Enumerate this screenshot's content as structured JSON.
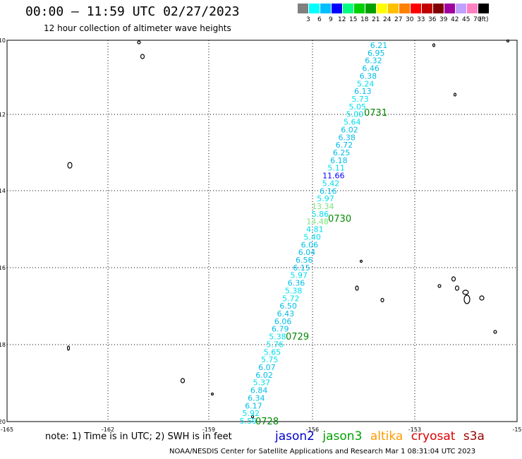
{
  "header": {
    "title": "00:00 – 11:59 UTC 02/27/2023",
    "subtitle": "12 hour collection of altimeter wave heights"
  },
  "legend": {
    "colors": [
      "#808080",
      "#00ffff",
      "#00bfff",
      "#0000ff",
      "#00ff80",
      "#00d000",
      "#00a000",
      "#ffff00",
      "#ffc000",
      "#ff8000",
      "#ff0000",
      "#c00000",
      "#800000",
      "#a000a0",
      "#c0a0ff",
      "#ff80c0",
      "#000000"
    ],
    "labels": [
      "3",
      "6",
      "9",
      "12",
      "15",
      "18",
      "21",
      "24",
      "27",
      "30",
      "33",
      "36",
      "39",
      "42",
      "45",
      "70",
      "(ft)"
    ]
  },
  "axes": {
    "y_ticks": [
      "-10",
      "-12",
      "-14",
      "-16",
      "-18",
      "-20"
    ],
    "x_ticks": [
      "-165",
      "-162",
      "-159",
      "-156",
      "-153",
      "-15"
    ]
  },
  "swh_values": [
    "6.21",
    "6.95",
    "6.32",
    "6.46",
    "6.38",
    "5.24",
    "6.13",
    "5.73",
    "5.05",
    "5.00",
    "5.64",
    "6.02",
    "6.38",
    "6.72",
    "6.25",
    "6.18",
    "5.11",
    "11.66",
    "5.42",
    "6.16",
    "5.97",
    "13.34",
    "5.86",
    "14.48",
    "4.81",
    "5.40",
    "6.06",
    "6.04",
    "6.56",
    "6.15",
    "5.97",
    "6.36",
    "5.38",
    "5.72",
    "6.50",
    "6.43",
    "6.06",
    "6.79",
    "5.38",
    "5.76",
    "5.65",
    "5.75",
    "6.07",
    "6.02",
    "5.37",
    "6.84",
    "6.34",
    "6.17",
    "5.92",
    "5.59"
  ],
  "time_labels": [
    "0731",
    "0730",
    "0729",
    "0728"
  ],
  "footer": {
    "note": "note: 1) Time is in UTC; 2) SWH is in feet",
    "satellites": [
      {
        "name": "jason2",
        "color": "#0000cc"
      },
      {
        "name": "jason3",
        "color": "#00a000"
      },
      {
        "name": "altika",
        "color": "#ff9900"
      },
      {
        "name": "cryosat",
        "color": "#dd0000"
      },
      {
        "name": "s3a",
        "color": "#990000"
      }
    ],
    "credit": "NOAA/NESDIS Center for Satellite Applications and Research    Mar  1 08:31:04 UTC 2023"
  }
}
